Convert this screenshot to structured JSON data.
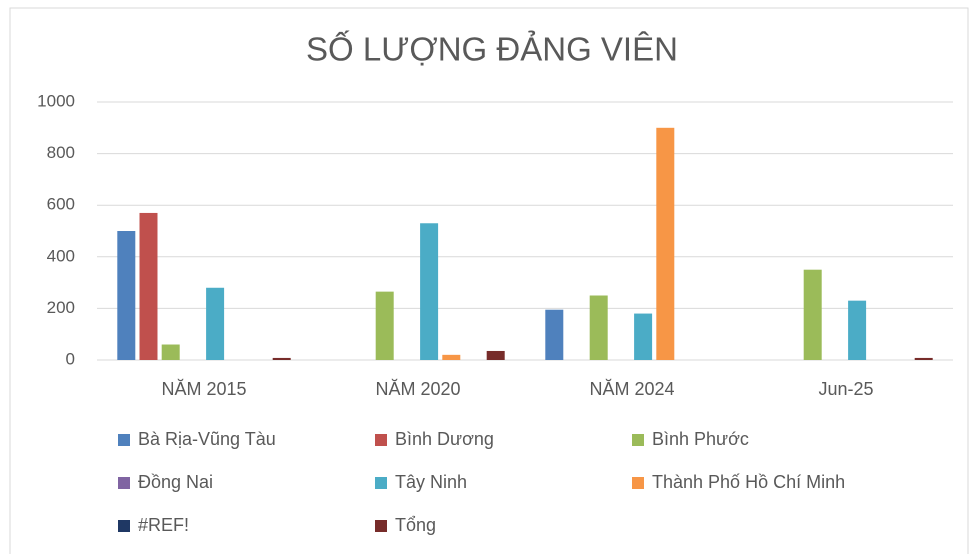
{
  "chart_data": {
    "type": "bar",
    "title": "SỐ LƯỢNG ĐẢNG VIÊN",
    "categories": [
      "NĂM 2015",
      "NĂM 2020",
      "NĂM 2024",
      "Jun-25"
    ],
    "series": [
      {
        "name": "Bà Rịa-Vũng Tàu",
        "color": "#4f81bd",
        "values": [
          500,
          0,
          195,
          0
        ]
      },
      {
        "name": "Bình Dương",
        "color": "#c0504d",
        "values": [
          570,
          0,
          0,
          0
        ]
      },
      {
        "name": "Bình Phước",
        "color": "#9bbb59",
        "values": [
          60,
          265,
          250,
          350
        ]
      },
      {
        "name": "Đồng Nai",
        "color": "#8064a2",
        "values": [
          0,
          0,
          0,
          0
        ]
      },
      {
        "name": "Tây Ninh",
        "color": "#4bacc6",
        "values": [
          280,
          530,
          180,
          230
        ]
      },
      {
        "name": "Thành Phố Hồ Chí Minh",
        "color": "#f79646",
        "values": [
          0,
          20,
          900,
          0
        ]
      },
      {
        "name": "#REF!",
        "color": "#1f3864",
        "values": [
          0,
          0,
          0,
          0
        ]
      },
      {
        "name": "Tổng",
        "color": "#772c2a",
        "values": [
          8,
          35,
          0,
          8
        ]
      }
    ],
    "ylim": [
      0,
      1000
    ],
    "yticks": [
      0,
      200,
      400,
      600,
      800,
      1000
    ],
    "grid": true
  }
}
